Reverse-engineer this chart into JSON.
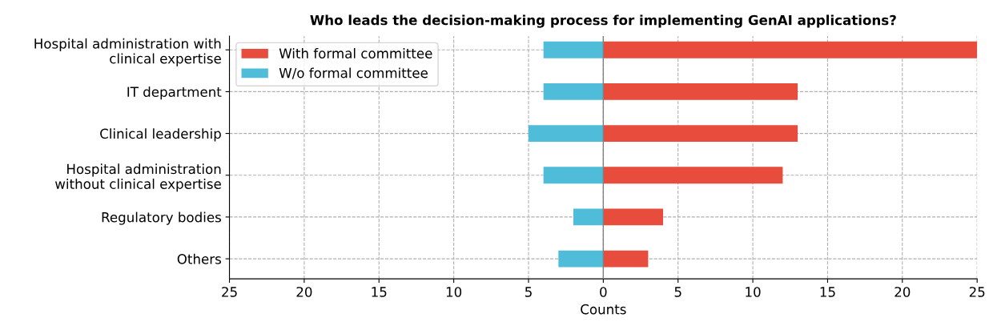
{
  "chart_data": {
    "type": "bar",
    "orientation": "horizontal",
    "stacked": true,
    "title": "Who leads the decision-making process for implementing GenAI applications?",
    "xlabel": "Counts",
    "categories": [
      "Hospital administration with\nclinical expertise",
      "IT department",
      "Clinical leadership",
      "Hospital administration\nwithout clinical expertise",
      "Regulatory bodies",
      "Others"
    ],
    "series": [
      {
        "name": "With formal committee",
        "color": "#e74c3c",
        "values": [
          25,
          13,
          13,
          12,
          4,
          3
        ]
      },
      {
        "name": "W/o formal committee",
        "color": "#4fbcd9",
        "values": [
          -4,
          -4,
          -5,
          -4,
          -2,
          -3
        ]
      }
    ],
    "xlim": [
      -25,
      25
    ],
    "xticks": [
      {
        "value": -25,
        "label": "25"
      },
      {
        "value": -20,
        "label": "20"
      },
      {
        "value": -15,
        "label": "15"
      },
      {
        "value": -10,
        "label": "10"
      },
      {
        "value": -5,
        "label": "5"
      },
      0,
      5,
      10,
      15,
      20,
      25
    ],
    "ref_lines": [
      {
        "axis": "x",
        "value": 0,
        "color": "#808080"
      }
    ],
    "grid": true,
    "legend": "top left"
  }
}
